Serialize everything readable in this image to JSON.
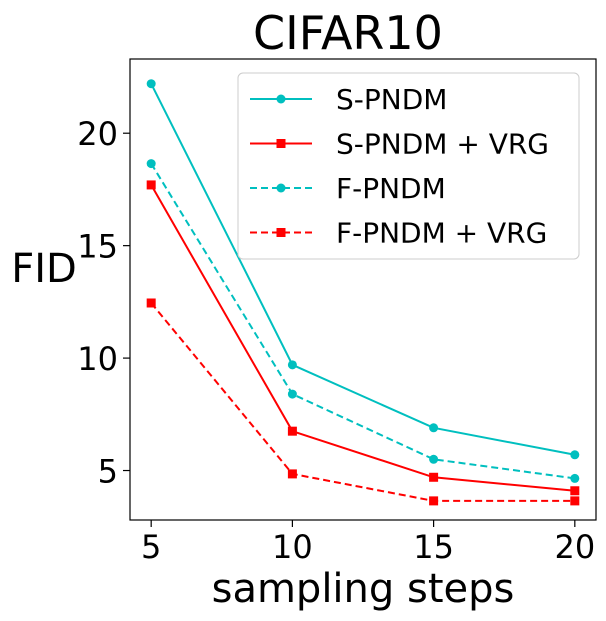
{
  "chart_data": {
    "type": "line",
    "title": "CIFAR10",
    "xlabel": "sampling steps",
    "ylabel": "FID",
    "x": [
      5,
      10,
      15,
      20
    ],
    "xticks": [
      5,
      10,
      15,
      20
    ],
    "xtick_labels": [
      "5",
      "10",
      "15",
      "20"
    ],
    "yticks": [
      5,
      10,
      15,
      20
    ],
    "ytick_labels": [
      "5",
      "10",
      "15",
      "20"
    ],
    "xlim": [
      4.25,
      20.75
    ],
    "ylim": [
      2.8,
      23.3
    ],
    "grid": false,
    "legend_position": "top-right",
    "series": [
      {
        "name": "S-PNDM",
        "values": [
          22.2,
          9.7,
          6.9,
          5.7
        ],
        "color": "#00bfbf",
        "dash": "solid",
        "marker": "circle"
      },
      {
        "name": "S-PNDM + VRG",
        "values": [
          17.7,
          6.75,
          4.7,
          4.1
        ],
        "color": "#ff0000",
        "dash": "solid",
        "marker": "square"
      },
      {
        "name": "F-PNDM",
        "values": [
          18.65,
          8.4,
          5.5,
          4.65
        ],
        "color": "#00bfbf",
        "dash": "dashed",
        "marker": "circle"
      },
      {
        "name": "F-PNDM + VRG",
        "values": [
          12.45,
          4.85,
          3.65,
          3.65
        ],
        "color": "#ff0000",
        "dash": "dashed",
        "marker": "square"
      }
    ]
  }
}
